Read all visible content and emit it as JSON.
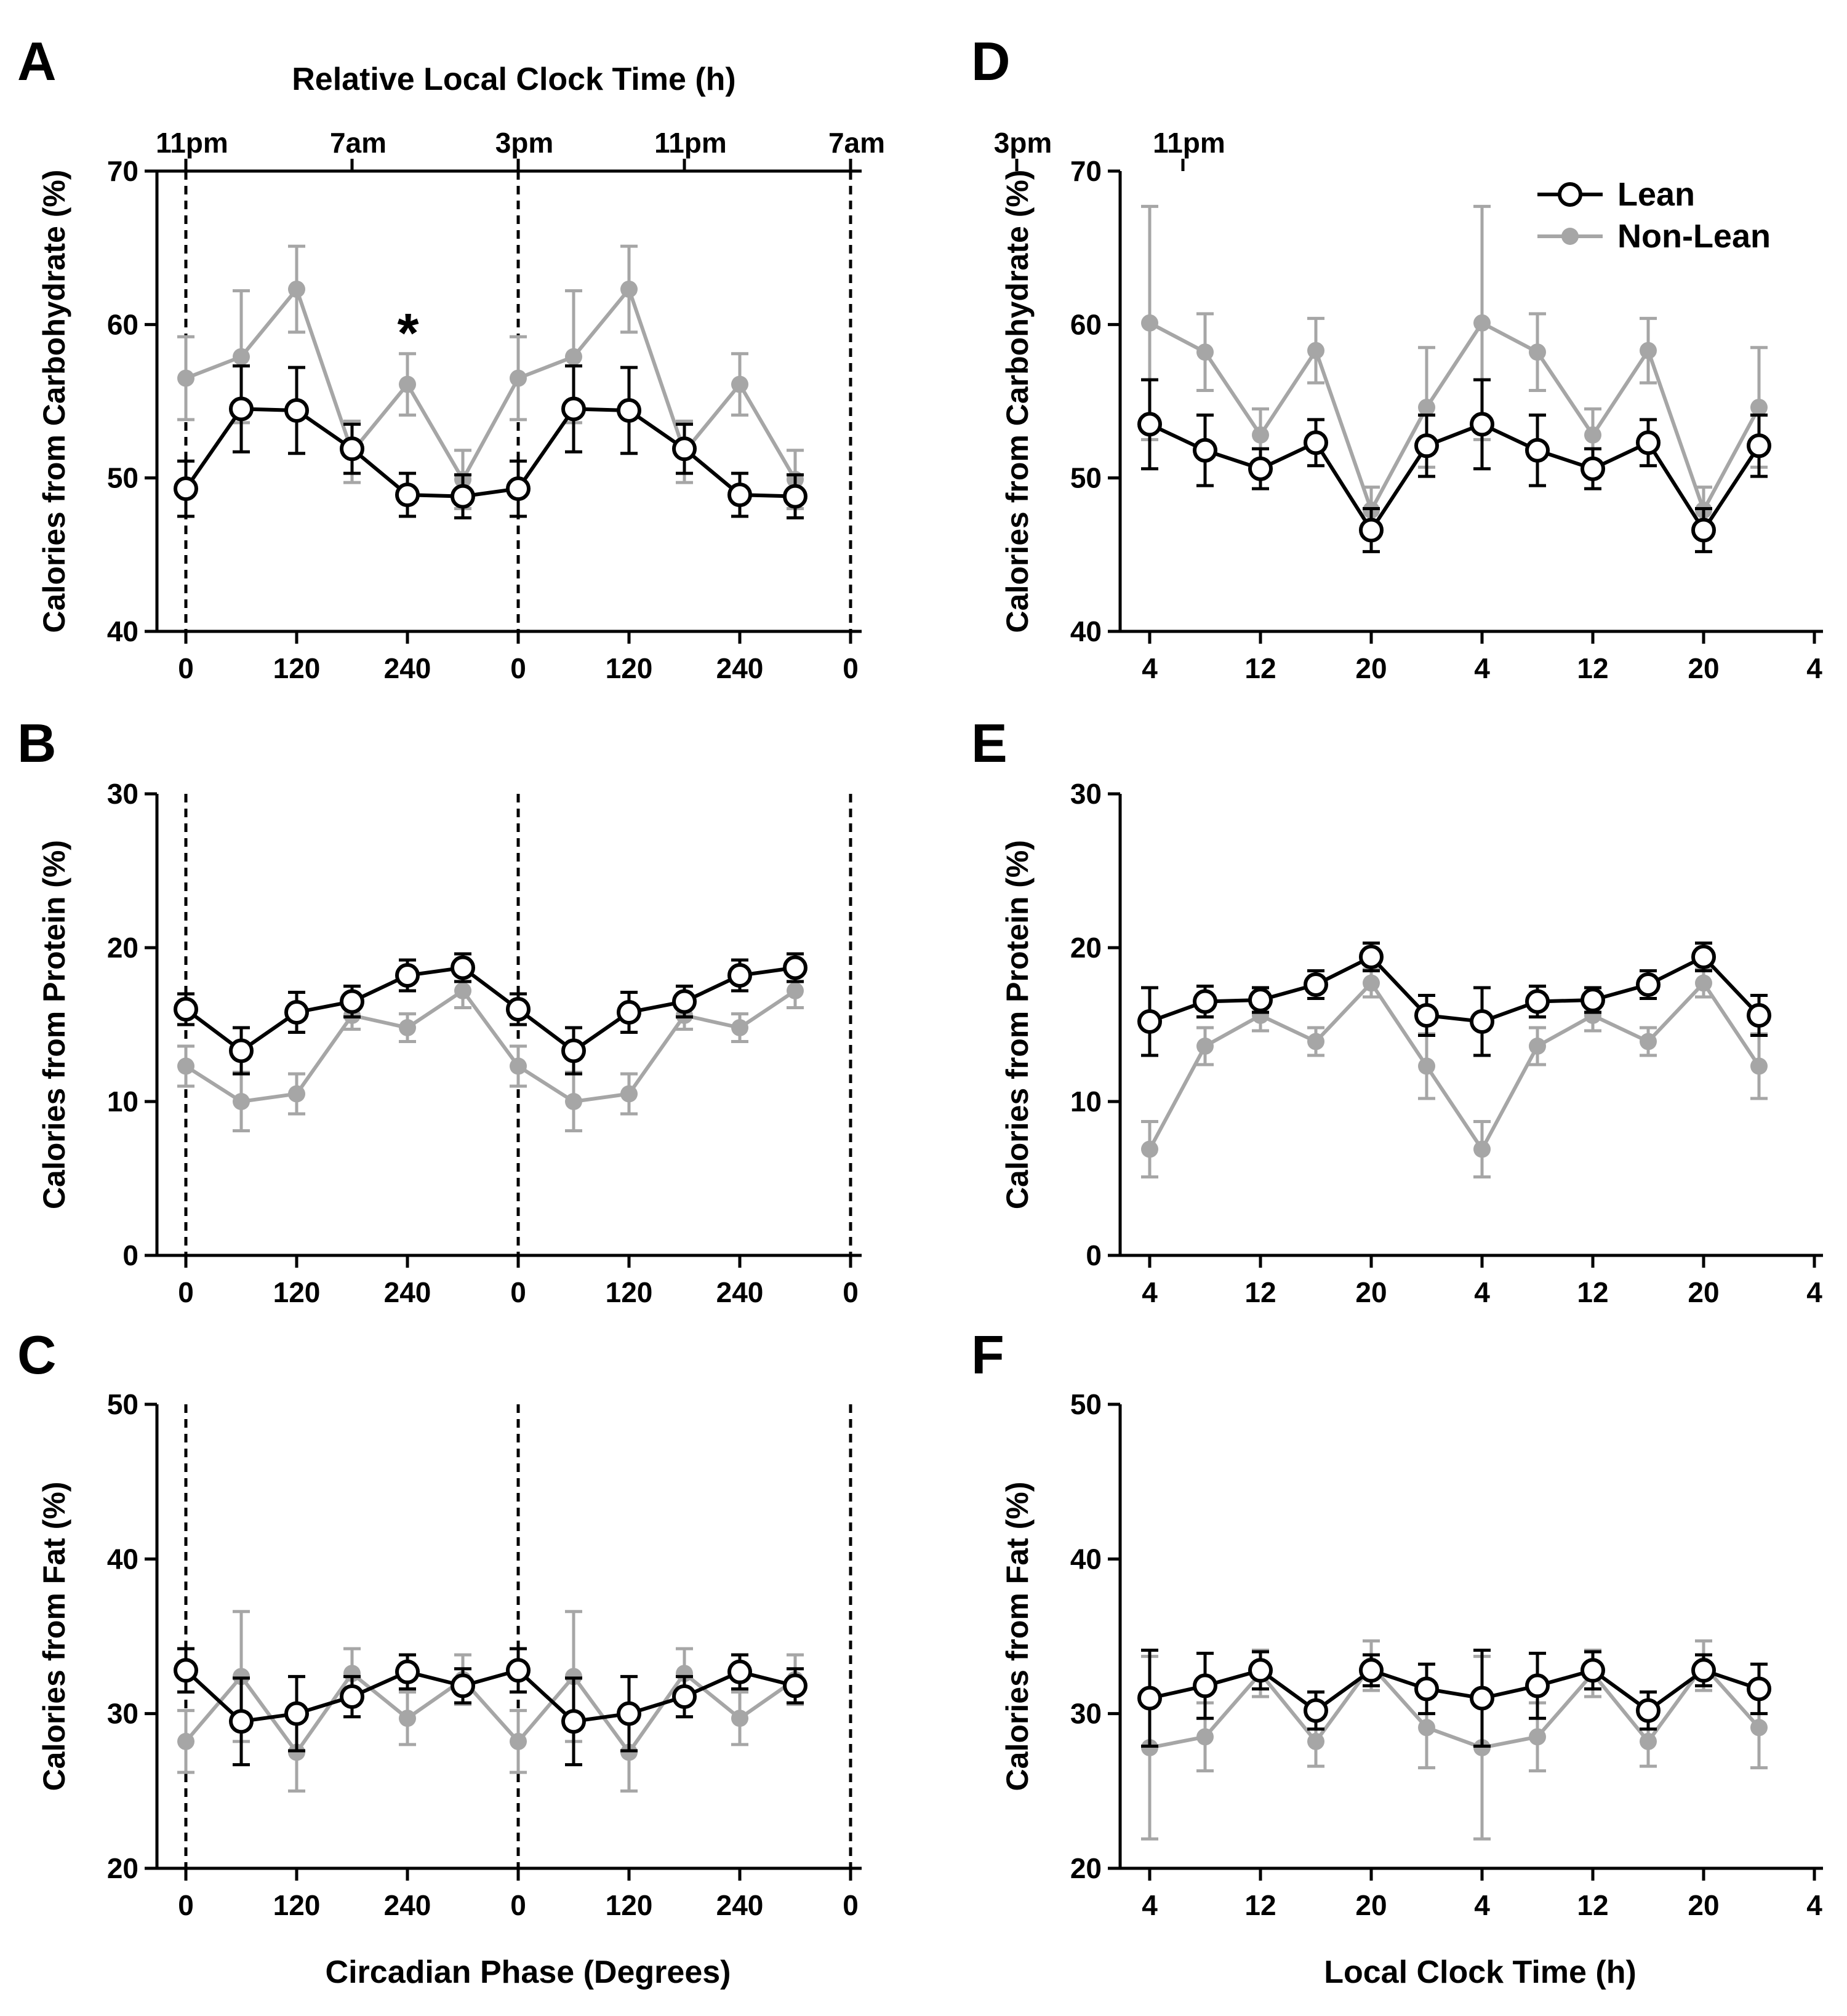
{
  "figure": {
    "top_axis_title": "Relative Local Clock Time (h)",
    "top_ticks": [
      "11pm",
      "7am",
      "3pm",
      "11pm",
      "7am",
      "3pm",
      "11pm"
    ],
    "left_xlabel": "Circadian Phase (Degrees)",
    "right_xlabel": "Local Clock Time (h)",
    "significance_marker": "*"
  },
  "legend": {
    "lean": "Lean",
    "nonlean": "Non-Lean"
  },
  "colors": {
    "lean": "#000000",
    "nonlean": "#a6a6a6"
  },
  "chart_data": [
    {
      "panel": "A",
      "type": "line",
      "ylabel": "Calories from Carbohydrate (%)",
      "ylim": [
        40,
        70
      ],
      "yticks": [
        "40",
        "50",
        "60",
        "70"
      ],
      "xticks": [
        "0",
        "120",
        "240",
        "0",
        "120",
        "240",
        "0"
      ],
      "x": [
        0,
        60,
        120,
        180,
        240,
        300,
        360,
        420,
        480,
        540,
        600,
        660
      ],
      "series": [
        {
          "name": "Lean",
          "values": [
            49.3,
            54.5,
            54.4,
            51.9,
            48.9,
            48.8,
            49.3,
            54.5,
            54.4,
            51.9,
            48.9,
            48.8
          ],
          "err": [
            1.8,
            2.8,
            2.8,
            1.6,
            1.4,
            1.4,
            1.8,
            2.8,
            2.8,
            1.6,
            1.4,
            1.4
          ]
        },
        {
          "name": "Non-Lean",
          "values": [
            56.5,
            57.9,
            62.3,
            51.7,
            56.1,
            49.9,
            56.5,
            57.9,
            62.3,
            51.7,
            56.1,
            49.9
          ],
          "err": [
            2.7,
            4.3,
            2.8,
            2.0,
            2.0,
            1.9,
            2.7,
            4.3,
            2.8,
            2.0,
            2.0,
            1.9
          ]
        }
      ]
    },
    {
      "panel": "B",
      "type": "line",
      "ylabel": "Calories from Protein  (%)",
      "ylim": [
        0,
        30
      ],
      "yticks": [
        "0",
        "10",
        "20",
        "30"
      ],
      "xticks": [
        "0",
        "120",
        "240",
        "0",
        "120",
        "240",
        "0"
      ],
      "x": [
        0,
        60,
        120,
        180,
        240,
        300,
        360,
        420,
        480,
        540,
        600,
        660
      ],
      "series": [
        {
          "name": "Lean",
          "values": [
            16.0,
            13.3,
            15.8,
            16.5,
            18.2,
            18.7,
            16.0,
            13.3,
            15.8,
            16.5,
            18.2,
            18.7
          ],
          "err": [
            1.0,
            1.5,
            1.3,
            1.0,
            1.0,
            0.9,
            1.0,
            1.5,
            1.3,
            1.0,
            1.0,
            0.9
          ]
        },
        {
          "name": "Non-Lean",
          "values": [
            12.3,
            10.0,
            10.5,
            15.6,
            14.8,
            17.2,
            12.3,
            10.0,
            10.5,
            15.6,
            14.8,
            17.2
          ],
          "err": [
            1.3,
            1.9,
            1.3,
            0.9,
            0.9,
            1.1,
            1.3,
            1.9,
            1.3,
            0.9,
            0.9,
            1.1
          ]
        }
      ]
    },
    {
      "panel": "C",
      "type": "line",
      "ylabel": "Calories from Fat (%)",
      "ylim": [
        20,
        50
      ],
      "yticks": [
        "20",
        "30",
        "40",
        "50"
      ],
      "xticks": [
        "0",
        "120",
        "240",
        "0",
        "120",
        "240",
        "0"
      ],
      "x": [
        0,
        60,
        120,
        180,
        240,
        300,
        360,
        420,
        480,
        540,
        600,
        660
      ],
      "series": [
        {
          "name": "Lean",
          "values": [
            32.8,
            29.5,
            30.0,
            31.1,
            32.7,
            31.8,
            32.8,
            29.5,
            30.0,
            31.1,
            32.7,
            31.8
          ],
          "err": [
            1.4,
            2.8,
            2.4,
            1.3,
            1.1,
            1.1,
            1.4,
            2.8,
            2.4,
            1.3,
            1.1,
            1.1
          ]
        },
        {
          "name": "Non-Lean",
          "values": [
            28.2,
            32.4,
            27.5,
            32.6,
            29.7,
            32.2,
            28.2,
            32.4,
            27.5,
            32.6,
            29.7,
            32.2
          ],
          "err": [
            2.0,
            4.2,
            2.5,
            1.6,
            1.7,
            1.6,
            2.0,
            4.2,
            2.5,
            1.6,
            1.7,
            1.6
          ]
        }
      ]
    },
    {
      "panel": "D",
      "type": "line",
      "ylabel": "Calories from Carbohydrate (%)",
      "ylim": [
        40,
        70
      ],
      "yticks": [
        "40",
        "50",
        "60",
        "70"
      ],
      "xticks": [
        "4",
        "12",
        "20",
        "4",
        "12",
        "20",
        "4"
      ],
      "x": [
        4,
        8,
        12,
        16,
        20,
        24,
        28,
        32,
        36,
        40,
        44,
        48
      ],
      "series": [
        {
          "name": "Lean",
          "values": [
            53.5,
            51.8,
            50.6,
            52.3,
            46.6,
            52.1,
            53.5,
            51.8,
            50.6,
            52.3,
            46.6,
            52.1
          ],
          "err": [
            2.9,
            2.3,
            1.3,
            1.5,
            1.4,
            2.0,
            2.9,
            2.3,
            1.3,
            1.5,
            1.4,
            2.0
          ]
        },
        {
          "name": "Non-Lean",
          "values": [
            60.1,
            58.2,
            52.8,
            58.3,
            47.9,
            54.6,
            60.1,
            58.2,
            52.8,
            58.3,
            47.9,
            54.6
          ],
          "err": [
            7.6,
            2.5,
            1.7,
            2.1,
            1.5,
            3.9,
            7.6,
            2.5,
            1.7,
            2.1,
            1.5,
            3.9
          ]
        }
      ]
    },
    {
      "panel": "E",
      "type": "line",
      "ylabel": "Calories from Protein  (%)",
      "ylim": [
        0,
        30
      ],
      "yticks": [
        "0",
        "10",
        "20",
        "30"
      ],
      "xticks": [
        "4",
        "12",
        "20",
        "4",
        "12",
        "20",
        "4"
      ],
      "x": [
        4,
        8,
        12,
        16,
        20,
        24,
        28,
        32,
        36,
        40,
        44,
        48
      ],
      "series": [
        {
          "name": "Lean",
          "values": [
            15.2,
            16.5,
            16.6,
            17.6,
            19.4,
            15.6,
            15.2,
            16.5,
            16.6,
            17.6,
            19.4,
            15.6
          ],
          "err": [
            2.2,
            1.0,
            0.8,
            0.9,
            0.9,
            1.3,
            2.2,
            1.0,
            0.8,
            0.9,
            0.9,
            1.3
          ]
        },
        {
          "name": "Non-Lean",
          "values": [
            6.9,
            13.6,
            15.6,
            13.9,
            17.7,
            12.3,
            6.9,
            13.6,
            15.6,
            13.9,
            17.7,
            12.3
          ],
          "err": [
            1.8,
            1.2,
            1.0,
            0.9,
            0.9,
            2.1,
            1.8,
            1.2,
            1.0,
            0.9,
            0.9,
            2.1
          ]
        }
      ]
    },
    {
      "panel": "F",
      "type": "line",
      "ylabel": "Calories from Fat (%)",
      "ylim": [
        20,
        50
      ],
      "yticks": [
        "20",
        "30",
        "40",
        "50"
      ],
      "xticks": [
        "4",
        "12",
        "20",
        "4",
        "12",
        "20",
        "4"
      ],
      "x": [
        4,
        8,
        12,
        16,
        20,
        24,
        28,
        32,
        36,
        40,
        44,
        48
      ],
      "series": [
        {
          "name": "Lean",
          "values": [
            31.0,
            31.8,
            32.8,
            30.2,
            32.8,
            31.6,
            31.0,
            31.8,
            32.8,
            30.2,
            32.8,
            31.6
          ],
          "err": [
            3.1,
            2.1,
            1.2,
            1.2,
            1.0,
            1.6,
            3.1,
            2.1,
            1.2,
            1.2,
            1.0,
            1.6
          ]
        },
        {
          "name": "Non-Lean",
          "values": [
            27.8,
            28.5,
            32.6,
            28.2,
            33.1,
            29.1,
            27.8,
            28.5,
            32.6,
            28.2,
            33.1,
            29.1
          ],
          "err": [
            5.9,
            2.2,
            1.5,
            1.6,
            1.6,
            2.6,
            5.9,
            2.2,
            1.5,
            1.6,
            1.6,
            2.6
          ]
        }
      ]
    }
  ]
}
